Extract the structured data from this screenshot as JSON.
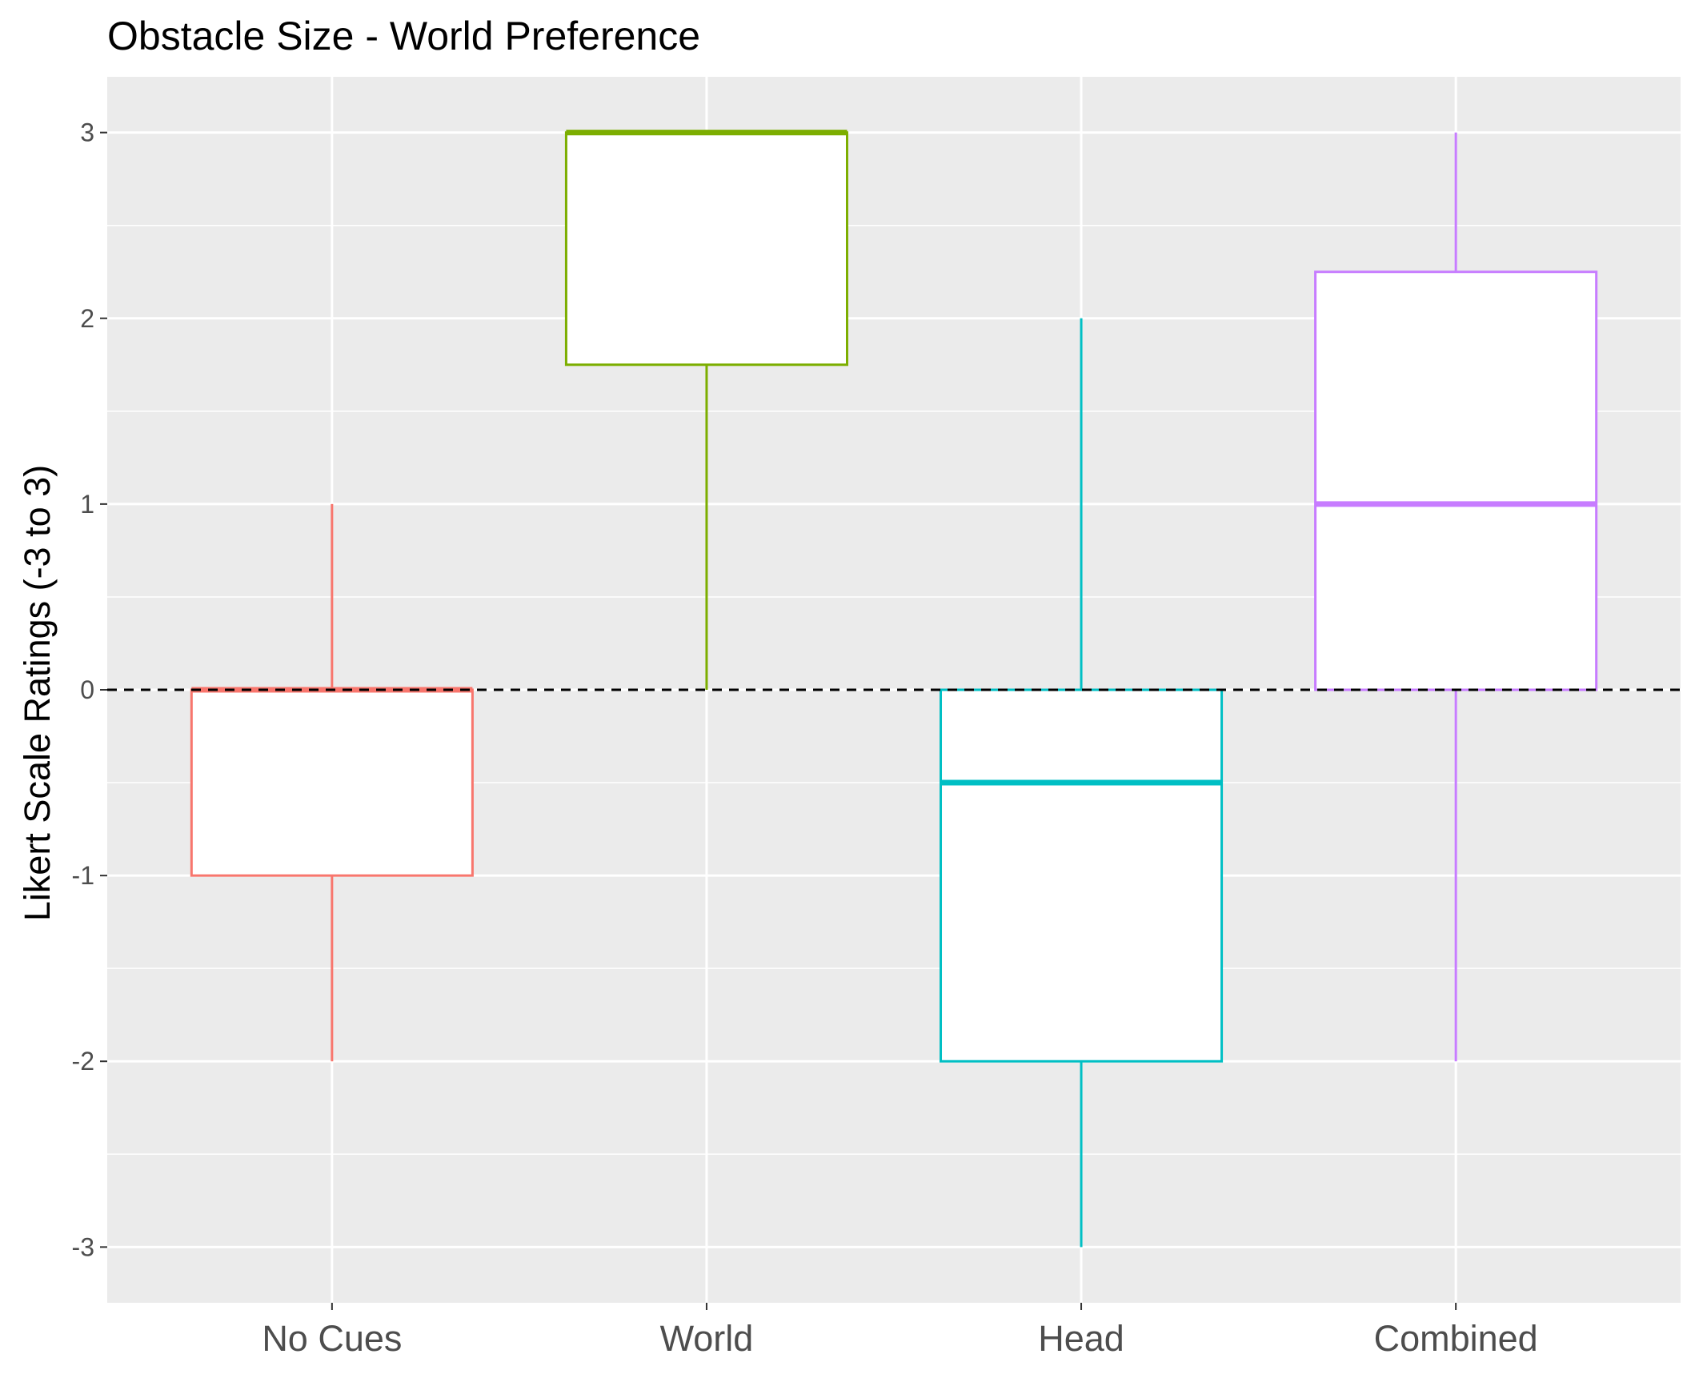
{
  "chart_data": {
    "type": "boxplot",
    "title": "Obstacle Size - World Preference",
    "xlabel": "",
    "ylabel": "Likert Scale Ratings (-3 to 3)",
    "ylim": [
      -3.3,
      3.3
    ],
    "yticks": [
      "3",
      "2",
      "1",
      "0",
      "-1",
      "-2",
      "-3"
    ],
    "ytick_values": [
      3,
      2,
      1,
      0,
      -1,
      -2,
      -3
    ],
    "reference_line": {
      "y": 0,
      "style": "dashed"
    },
    "grid": true,
    "panel_background": "#ebebeb",
    "categories": [
      "No Cues",
      "World",
      "Head",
      "Combined"
    ],
    "boxes": [
      {
        "category": "No Cues",
        "min": -2,
        "q1": -1,
        "median": 0,
        "q3": 0,
        "max": 1,
        "color": "#f8766d"
      },
      {
        "category": "World",
        "min": 0,
        "q1": 1.75,
        "median": 3,
        "q3": 3,
        "max": 3,
        "color": "#7cae00"
      },
      {
        "category": "Head",
        "min": -3,
        "q1": -2,
        "median": -0.5,
        "q3": 0,
        "max": 2,
        "color": "#00bfc4"
      },
      {
        "category": "Combined",
        "min": -2,
        "q1": 0,
        "median": 1,
        "q3": 2.25,
        "max": 3,
        "color": "#c77cff"
      }
    ]
  }
}
